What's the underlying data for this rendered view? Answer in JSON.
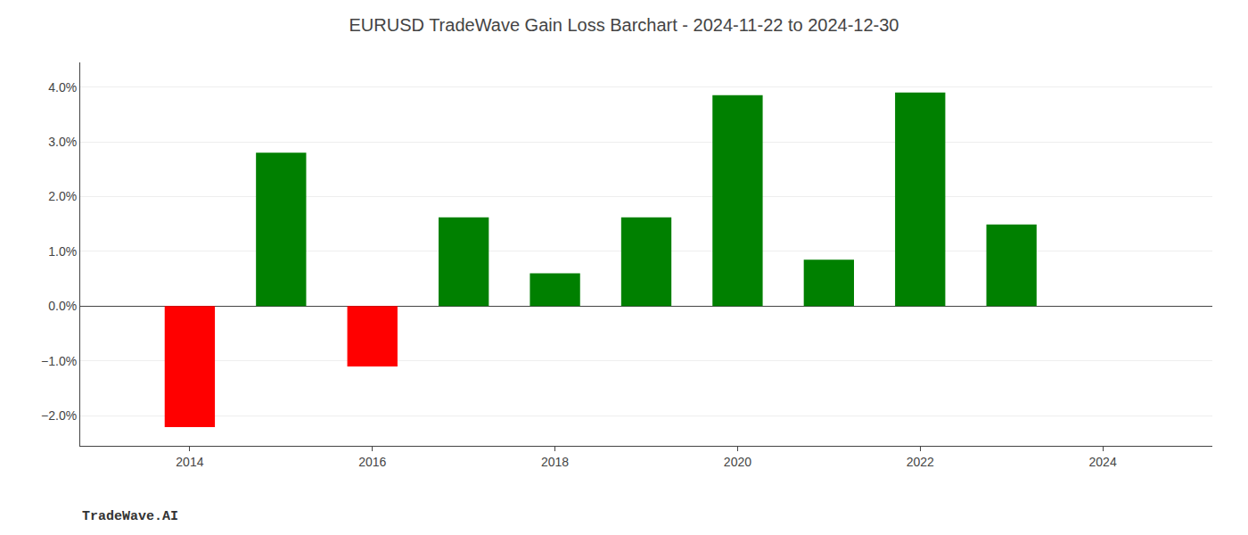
{
  "chart_data": {
    "type": "bar",
    "title": "EURUSD TradeWave Gain Loss Barchart - 2024-11-22 to 2024-12-30",
    "annotations": [
      "TradeWave.AI"
    ],
    "x": [
      2014,
      2015,
      2016,
      2017,
      2018,
      2019,
      2020,
      2021,
      2022,
      2023
    ],
    "values": [
      -2.21,
      2.8,
      -1.1,
      1.62,
      0.6,
      1.62,
      3.85,
      0.85,
      3.9,
      1.49
    ],
    "colors": [
      "#ff0000",
      "#008000",
      "#ff0000",
      "#008000",
      "#008000",
      "#008000",
      "#008000",
      "#008000",
      "#008000",
      "#008000"
    ],
    "xlim": [
      2012.8,
      2025.2
    ],
    "xticks": [
      2014,
      2016,
      2018,
      2020,
      2022,
      2024
    ],
    "ylim": [
      -2.55,
      4.45
    ],
    "yticks": [
      {
        "value": -2.0,
        "label": "−2.0%"
      },
      {
        "value": -1.0,
        "label": "−1.0%"
      },
      {
        "value": 0.0,
        "label": "0.0%"
      },
      {
        "value": 1.0,
        "label": "1.0%"
      },
      {
        "value": 2.0,
        "label": "2.0%"
      },
      {
        "value": 3.0,
        "label": "3.0%"
      },
      {
        "value": 4.0,
        "label": "4.0%"
      }
    ],
    "grid": true
  }
}
